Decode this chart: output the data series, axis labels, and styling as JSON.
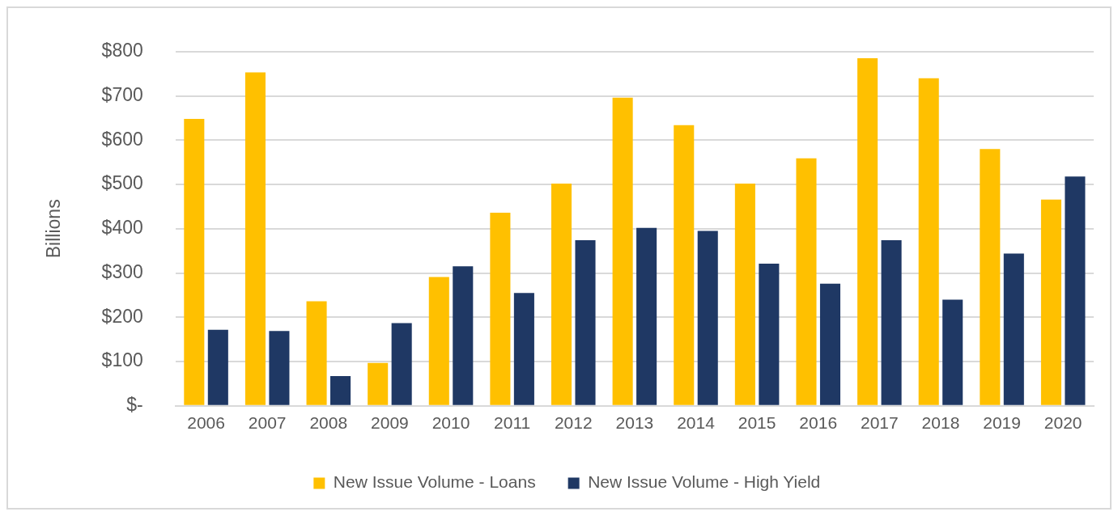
{
  "chart_data": {
    "type": "bar",
    "ylabel": "Billions",
    "categories": [
      "2006",
      "2007",
      "2008",
      "2009",
      "2010",
      "2011",
      "2012",
      "2013",
      "2014",
      "2015",
      "2016",
      "2017",
      "2018",
      "2019",
      "2020"
    ],
    "series": [
      {
        "name": "New Issue Volume - Loans",
        "color": "#ffc000",
        "values": [
          648,
          753,
          236,
          97,
          291,
          436,
          502,
          696,
          634,
          502,
          559,
          785,
          740,
          580,
          466
        ]
      },
      {
        "name": "New Issue Volume - High Yield",
        "color": "#1f3864",
        "values": [
          172,
          169,
          67,
          187,
          315,
          255,
          374,
          402,
          395,
          321,
          276,
          374,
          240,
          344,
          518
        ]
      }
    ],
    "ylim": [
      0,
      800
    ],
    "yticks": [
      {
        "value": 0,
        "label": "$-"
      },
      {
        "value": 100,
        "label": "$100"
      },
      {
        "value": 200,
        "label": "$200"
      },
      {
        "value": 300,
        "label": "$300"
      },
      {
        "value": 400,
        "label": "$400"
      },
      {
        "value": 500,
        "label": "$500"
      },
      {
        "value": 600,
        "label": "$600"
      },
      {
        "value": 700,
        "label": "$700"
      },
      {
        "value": 800,
        "label": "$800"
      }
    ],
    "grid": "y",
    "legend": "bottom"
  }
}
